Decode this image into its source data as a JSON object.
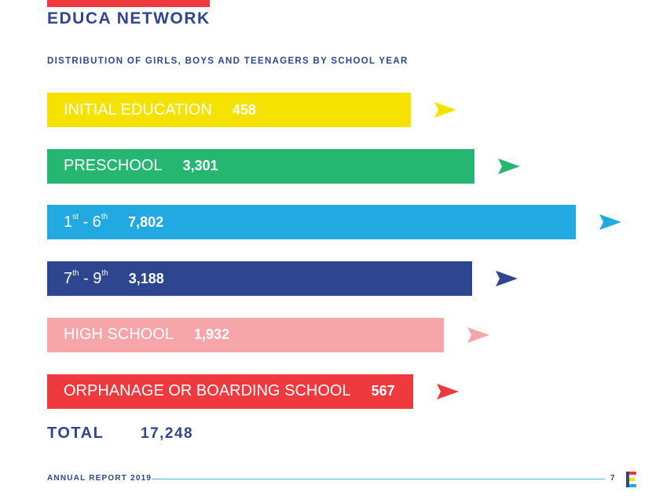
{
  "header": {
    "brand": "EDUCA NETWORK",
    "subtitle": "DISTRIBUTION OF GIRLS, BOYS AND TEENAGERS BY SCHOOL YEAR",
    "accent_color": "#ee3a3f"
  },
  "chart_data": {
    "type": "bar",
    "orientation": "horizontal",
    "title": "DISTRIBUTION OF GIRLS, BOYS AND TEENAGERS BY SCHOOL YEAR",
    "bars": [
      {
        "label": "INITIAL EDUCATION",
        "value": 458,
        "value_label": "458",
        "color": "#f5e200",
        "label_color": "#ffffff"
      },
      {
        "label": "PRESCHOOL",
        "value": 3301,
        "value_label": "3,301",
        "color": "#25b672",
        "label_color": "#ffffff"
      },
      {
        "label_parts": [
          "1",
          "st",
          " - 6",
          "th"
        ],
        "value": 7802,
        "value_label": "7,802",
        "color": "#22a9e1",
        "label_color": "#ffffff"
      },
      {
        "label_parts": [
          "7",
          "th",
          " - 9",
          "th"
        ],
        "value": 3188,
        "value_label": "3,188",
        "color": "#2e4590",
        "label_color": "#ffffff"
      },
      {
        "label": "HIGH SCHOOL",
        "value": 1932,
        "value_label": "1,932",
        "color": "#f6a5a9",
        "label_color": "#ffffff"
      },
      {
        "label": "ORPHANAGE OR BOARDING SCHOOL",
        "value": 567,
        "value_label": "567",
        "color": "#ee3a3f",
        "label_color": "#ffffff"
      }
    ],
    "flag_icon": "pennant-flag-icon"
  },
  "total": {
    "label": "TOTAL",
    "value": "17,248"
  },
  "footer": {
    "label": "ANNUAL REPORT 2019",
    "page": "7",
    "rule_color": "#48b8d4",
    "logo_icon": "educa-logo-icon"
  }
}
